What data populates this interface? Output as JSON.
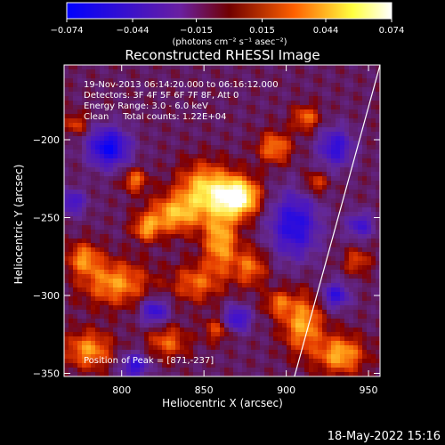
{
  "chart_data": {
    "type": "heatmap",
    "title": "Reconstructed RHESSI Image",
    "xlabel": "Heliocentric X (arcsec)",
    "ylabel": "Heliocentric Y (arcsec)",
    "xlim": [
      765,
      957
    ],
    "ylim": [
      -352,
      -152
    ],
    "x_ticks": [
      800,
      850,
      900,
      950
    ],
    "y_ticks": [
      -350,
      -300,
      -250,
      -200
    ],
    "colorbar": {
      "min": -0.074,
      "max": 0.074,
      "tick_values": [
        -0.074,
        -0.044,
        -0.015,
        0.015,
        0.044,
        0.074
      ],
      "tick_labels": [
        "−0.074",
        "−0.044",
        "−0.015",
        "0.015",
        "0.044",
        "0.074"
      ],
      "unit_label": "(photons cm⁻² s⁻¹ asec⁻²)",
      "colors": [
        "#0000ff",
        "#6a1fa0",
        "#800000",
        "#ff6000",
        "#ffff40",
        "#ffffff"
      ]
    },
    "annotations": [
      "19-Nov-2013 06:14:20.000 to 06:16:12.000",
      "Detectors: 3F 4F 5F 6F 7F 8F, Att 0",
      "Energy Range: 3.0 - 6.0 keV",
      "Clean     Total counts: 1.22E+04"
    ],
    "peak_label": "Position of Peak = [871,-237]",
    "peak_position": [
      871,
      -237
    ],
    "limb_line": [
      [
        905,
        -352
      ],
      [
        957,
        -152
      ]
    ],
    "timestamp": "18-May-2022 15:16",
    "hotspots": [
      {
        "x": 871,
        "y": -237,
        "sx": 12,
        "sy": 12,
        "a": 1.0
      },
      {
        "x": 851,
        "y": -232,
        "sx": 16,
        "sy": 16,
        "a": 0.72
      },
      {
        "x": 832,
        "y": -248,
        "sx": 16,
        "sy": 12,
        "a": 0.6
      },
      {
        "x": 860,
        "y": -265,
        "sx": 10,
        "sy": 20,
        "a": 0.62
      },
      {
        "x": 878,
        "y": -282,
        "sx": 10,
        "sy": 12,
        "a": 0.45
      },
      {
        "x": 845,
        "y": -292,
        "sx": 14,
        "sy": 12,
        "a": 0.42
      },
      {
        "x": 796,
        "y": -292,
        "sx": 20,
        "sy": 14,
        "a": 0.55
      },
      {
        "x": 777,
        "y": -276,
        "sx": 10,
        "sy": 10,
        "a": 0.5
      },
      {
        "x": 815,
        "y": -257,
        "sx": 8,
        "sy": 8,
        "a": 0.5
      },
      {
        "x": 808,
        "y": -226,
        "sx": 7,
        "sy": 7,
        "a": 0.48
      },
      {
        "x": 893,
        "y": -205,
        "sx": 10,
        "sy": 10,
        "a": 0.5
      },
      {
        "x": 912,
        "y": -186,
        "sx": 8,
        "sy": 8,
        "a": 0.45
      },
      {
        "x": 918,
        "y": -228,
        "sx": 7,
        "sy": 7,
        "a": 0.38
      },
      {
        "x": 910,
        "y": -318,
        "sx": 12,
        "sy": 18,
        "a": 0.6
      },
      {
        "x": 933,
        "y": -338,
        "sx": 14,
        "sy": 12,
        "a": 0.62
      },
      {
        "x": 895,
        "y": -305,
        "sx": 8,
        "sy": 8,
        "a": 0.4
      },
      {
        "x": 780,
        "y": -335,
        "sx": 14,
        "sy": 12,
        "a": 0.55
      },
      {
        "x": 828,
        "y": -330,
        "sx": 12,
        "sy": 10,
        "a": 0.42
      },
      {
        "x": 858,
        "y": -322,
        "sx": 8,
        "sy": 8,
        "a": 0.35
      },
      {
        "x": 772,
        "y": -190,
        "sx": 7,
        "sy": 7,
        "a": 0.35
      },
      {
        "x": 943,
        "y": -278,
        "sx": 8,
        "sy": 8,
        "a": 0.35
      }
    ],
    "coldspots": [
      {
        "x": 792,
        "y": -205,
        "sx": 12,
        "sy": 12,
        "a": 0.85
      },
      {
        "x": 905,
        "y": -255,
        "sx": 14,
        "sy": 20,
        "a": 0.7
      },
      {
        "x": 930,
        "y": -205,
        "sx": 10,
        "sy": 12,
        "a": 0.6
      },
      {
        "x": 930,
        "y": -300,
        "sx": 8,
        "sy": 8,
        "a": 0.6
      },
      {
        "x": 820,
        "y": -310,
        "sx": 8,
        "sy": 8,
        "a": 0.6
      },
      {
        "x": 870,
        "y": -315,
        "sx": 8,
        "sy": 8,
        "a": 0.6
      },
      {
        "x": 808,
        "y": -345,
        "sx": 8,
        "sy": 8,
        "a": 0.6
      },
      {
        "x": 945,
        "y": -255,
        "sx": 8,
        "sy": 8,
        "a": 0.5
      },
      {
        "x": 770,
        "y": -240,
        "sx": 8,
        "sy": 8,
        "a": 0.5
      }
    ]
  }
}
